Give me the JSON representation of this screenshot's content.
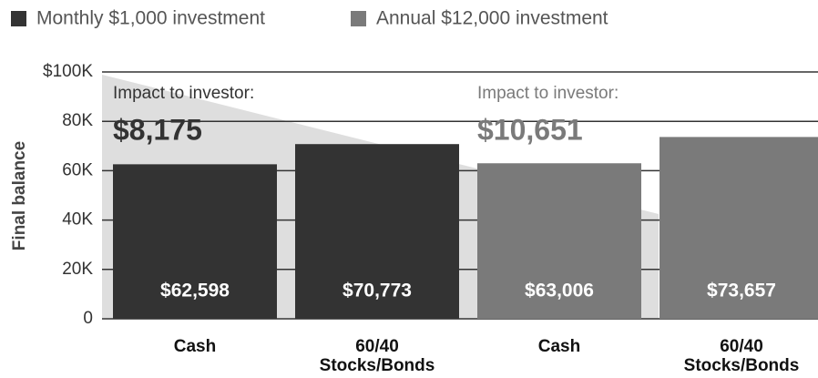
{
  "chart_data": {
    "type": "bar",
    "y_label": "Final balance",
    "categories": [
      "Cash",
      "60/40 Stocks/Bonds"
    ],
    "series": [
      {
        "name": "Monthly $1,000 investment",
        "color": "#333333",
        "values": [
          62598,
          70773
        ],
        "value_labels": [
          "$62,598",
          "$70,773"
        ]
      },
      {
        "name": "Annual $12,000 investment",
        "color": "#7a7a7a",
        "values": [
          63006,
          73657
        ],
        "value_labels": [
          "$63,006",
          "$73,657"
        ]
      }
    ],
    "annotations": [
      {
        "text": "Impact to investor:",
        "value": "$8,175",
        "color": "#333333"
      },
      {
        "text": "Impact to investor:",
        "value": "$10,651",
        "color": "#7a7a7a"
      }
    ],
    "ylim": [
      0,
      100000
    ],
    "yticks": [
      0,
      {
        "value": 20000,
        "label": "20K"
      },
      {
        "value": 40000,
        "label": "40K"
      },
      {
        "value": 60000,
        "label": "60K"
      },
      {
        "value": 80000,
        "label": "80K"
      },
      {
        "value": 100000,
        "label": "$100K"
      }
    ],
    "grid": true
  }
}
